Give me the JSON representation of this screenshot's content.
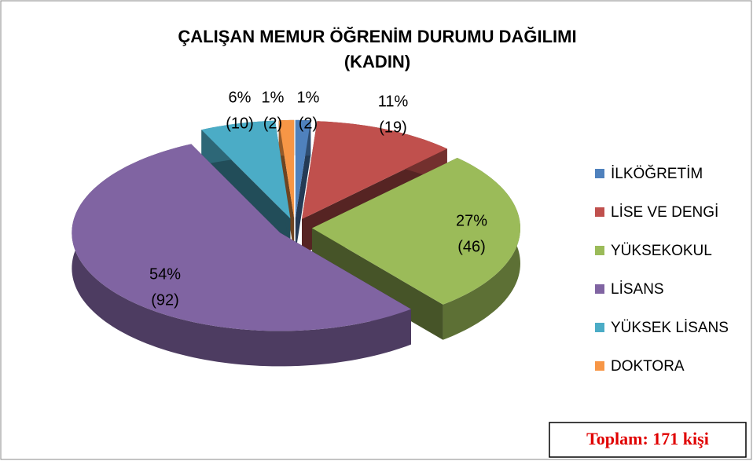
{
  "chart_data": {
    "type": "pie3d",
    "title": "ÇALIŞAN MEMUR ÖĞRENİM DURUMU DAĞILIMI",
    "subtitle": "(KADIN)",
    "categories": [
      "İLKÖĞRETİM",
      "LİSE VE DENGİ",
      "YÜKSEKOKUL",
      "LİSANS",
      "YÜKSEK LİSANS",
      "DOKTORA"
    ],
    "values": [
      1,
      11,
      27,
      54,
      6,
      1
    ],
    "value_labels": [
      "1%",
      "11%",
      "27%",
      "54%",
      "6%",
      "1%"
    ],
    "counts": [
      2,
      19,
      46,
      92,
      10,
      2
    ],
    "count_labels": [
      "(2)",
      "(19)",
      "(46)",
      "(92)",
      "(10)",
      "(2)"
    ],
    "colors": [
      "#4f81bd",
      "#c0504d",
      "#9bbb59",
      "#8064a2",
      "#4bacc6",
      "#f79646"
    ],
    "legend": "right",
    "total_label": "Toplam: 171 kişi"
  }
}
